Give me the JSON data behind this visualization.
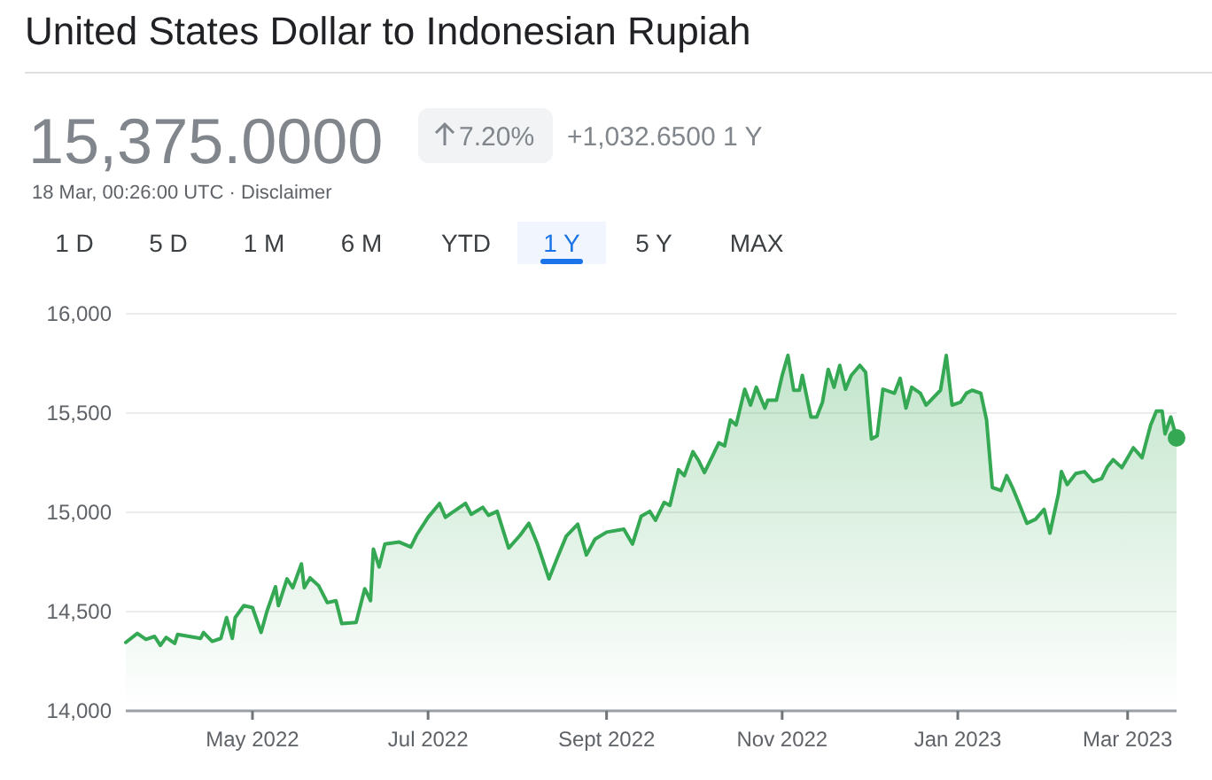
{
  "chart_data": {
    "type": "area",
    "title": "United States Dollar to Indonesian Rupiah",
    "subtitle": "15,375.0000",
    "annotations": [
      "7.20%",
      "+1,032.6500 1 Y",
      "18 Mar, 00:26:00 UTC · Disclaimer",
      "1 D",
      "5 D",
      "1 M",
      "6 M",
      "YTD",
      "1 Y",
      "5 Y",
      "MAX"
    ],
    "xlim": [
      "2022-03-18",
      "2023-03-18"
    ],
    "xticks": [
      {
        "value": "2022-05-01",
        "label": "May 2022"
      },
      {
        "value": "2022-07-01",
        "label": "Jul 2022"
      },
      {
        "value": "2022-09-01",
        "label": "Sept 2022"
      },
      {
        "value": "2022-11-01",
        "label": "Nov 2022"
      },
      {
        "value": "2023-01-01",
        "label": "Jan 2023"
      },
      {
        "value": "2023-03-01",
        "label": "Mar 2023"
      }
    ],
    "ylim": [
      14000,
      16000
    ],
    "yticks": [
      {
        "value": 14000,
        "label": "14,000"
      },
      {
        "value": 14500,
        "label": "14,500"
      },
      {
        "value": 15000,
        "label": "15,000"
      },
      {
        "value": 15500,
        "label": "15,500"
      },
      {
        "value": 16000,
        "label": "16,000"
      }
    ],
    "grid": "y",
    "series": [
      {
        "color": "#34a853",
        "x": [
          "2022-03-18",
          "2022-03-22",
          "2022-03-25",
          "2022-03-28",
          "2022-03-30",
          "2022-04-01",
          "2022-04-04",
          "2022-04-05",
          "2022-04-13",
          "2022-04-14",
          "2022-04-17",
          "2022-04-20",
          "2022-04-22",
          "2022-04-24",
          "2022-04-25",
          "2022-04-28",
          "2022-05-01",
          "2022-05-04",
          "2022-05-06",
          "2022-05-09",
          "2022-05-10",
          "2022-05-13",
          "2022-05-15",
          "2022-05-18",
          "2022-05-19",
          "2022-05-21",
          "2022-05-24",
          "2022-05-27",
          "2022-05-30",
          "2022-06-01",
          "2022-06-06",
          "2022-06-09",
          "2022-06-11",
          "2022-06-12",
          "2022-06-14",
          "2022-06-16",
          "2022-06-21",
          "2022-06-25",
          "2022-06-27",
          "2022-07-01",
          "2022-07-05",
          "2022-07-07",
          "2022-07-14",
          "2022-07-16",
          "2022-07-20",
          "2022-07-22",
          "2022-07-25",
          "2022-07-29",
          "2022-08-02",
          "2022-08-05",
          "2022-08-08",
          "2022-08-12",
          "2022-08-15",
          "2022-08-18",
          "2022-08-22",
          "2022-08-25",
          "2022-08-28",
          "2022-09-01",
          "2022-09-07",
          "2022-09-10",
          "2022-09-13",
          "2022-09-16",
          "2022-09-18",
          "2022-09-21",
          "2022-09-23",
          "2022-09-26",
          "2022-09-28",
          "2022-10-01",
          "2022-10-03",
          "2022-10-05",
          "2022-10-08",
          "2022-10-10",
          "2022-10-12",
          "2022-10-14",
          "2022-10-16",
          "2022-10-19",
          "2022-10-21",
          "2022-10-23",
          "2022-10-26",
          "2022-10-27",
          "2022-10-30",
          "2022-11-01",
          "2022-11-03",
          "2022-11-05",
          "2022-11-07",
          "2022-11-08",
          "2022-11-11",
          "2022-11-13",
          "2022-11-15",
          "2022-11-17",
          "2022-11-19",
          "2022-11-21",
          "2022-11-23",
          "2022-11-25",
          "2022-11-28",
          "2022-11-30",
          "2022-12-02",
          "2022-12-04",
          "2022-12-06",
          "2022-12-10",
          "2022-12-12",
          "2022-12-14",
          "2022-12-16",
          "2022-12-19",
          "2022-12-21",
          "2022-12-26",
          "2022-12-28",
          "2022-12-30",
          "2023-01-02",
          "2023-01-04",
          "2023-01-06",
          "2023-01-09",
          "2023-01-11",
          "2023-01-13",
          "2023-01-16",
          "2023-01-18",
          "2023-01-20",
          "2023-01-22",
          "2023-01-25",
          "2023-01-28",
          "2023-01-31",
          "2023-02-02",
          "2023-02-05",
          "2023-02-06",
          "2023-02-08",
          "2023-02-11",
          "2023-02-14",
          "2023-02-17",
          "2023-02-20",
          "2023-02-22",
          "2023-02-24",
          "2023-02-27",
          "2023-03-03",
          "2023-03-06",
          "2023-03-09",
          "2023-03-11",
          "2023-03-13",
          "2023-03-14",
          "2023-03-16",
          "2023-03-18"
        ],
        "values": [
          14345,
          14390,
          14360,
          14375,
          14330,
          14370,
          14340,
          14385,
          14365,
          14395,
          14350,
          14365,
          14470,
          14365,
          14470,
          14530,
          14520,
          14395,
          14500,
          14625,
          14530,
          14665,
          14620,
          14740,
          14620,
          14670,
          14630,
          14545,
          14555,
          14440,
          14445,
          14615,
          14555,
          14815,
          14725,
          14840,
          14850,
          14825,
          14885,
          14975,
          15045,
          14975,
          15045,
          14990,
          15025,
          14985,
          15005,
          14820,
          14885,
          14945,
          14840,
          14665,
          14775,
          14880,
          14940,
          14785,
          14865,
          14900,
          14915,
          14840,
          14980,
          15005,
          14960,
          15050,
          15035,
          15215,
          15185,
          15305,
          15260,
          15200,
          15290,
          15350,
          15335,
          15465,
          15440,
          15620,
          15540,
          15630,
          15525,
          15565,
          15565,
          15690,
          15790,
          15615,
          15615,
          15690,
          15480,
          15480,
          15555,
          15720,
          15630,
          15740,
          15620,
          15690,
          15740,
          15705,
          15370,
          15385,
          15620,
          15600,
          15675,
          15525,
          15630,
          15600,
          15540,
          15615,
          15790,
          15540,
          15555,
          15600,
          15615,
          15600,
          15465,
          15125,
          15110,
          15185,
          15125,
          15055,
          14945,
          14965,
          15015,
          14895,
          15095,
          15205,
          15140,
          15195,
          15205,
          15155,
          15170,
          15230,
          15265,
          15225,
          15325,
          15275,
          15440,
          15510,
          15510,
          15395,
          15480,
          15375
        ]
      }
    ]
  }
}
